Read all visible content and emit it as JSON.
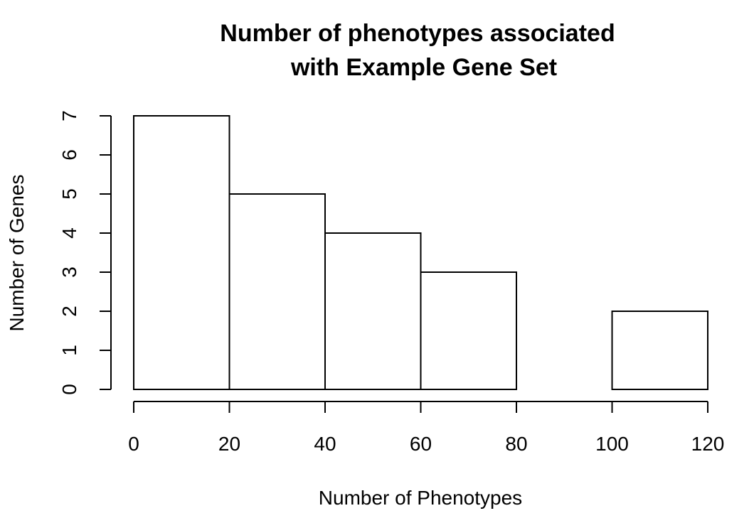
{
  "chart_data": {
    "type": "bar",
    "title_lines": [
      "Number of phenotypes associated",
      "with Example Gene Set"
    ],
    "xlabel": "Number of Phenotypes",
    "ylabel": "Number of Genes",
    "bins": [
      {
        "from": 0,
        "to": 20,
        "count": 7
      },
      {
        "from": 20,
        "to": 40,
        "count": 5
      },
      {
        "from": 40,
        "to": 60,
        "count": 4
      },
      {
        "from": 60,
        "to": 80,
        "count": 3
      },
      {
        "from": 80,
        "to": 100,
        "count": 0
      },
      {
        "from": 100,
        "to": 120,
        "count": 2
      }
    ],
    "xlim": [
      0,
      120
    ],
    "ylim": [
      0,
      7
    ],
    "xticks": [
      "0",
      "20",
      "40",
      "60",
      "80",
      "100",
      "120"
    ],
    "yticks": [
      "0",
      "1",
      "2",
      "3",
      "4",
      "5",
      "6",
      "7"
    ],
    "grid": false,
    "legend": "none"
  }
}
